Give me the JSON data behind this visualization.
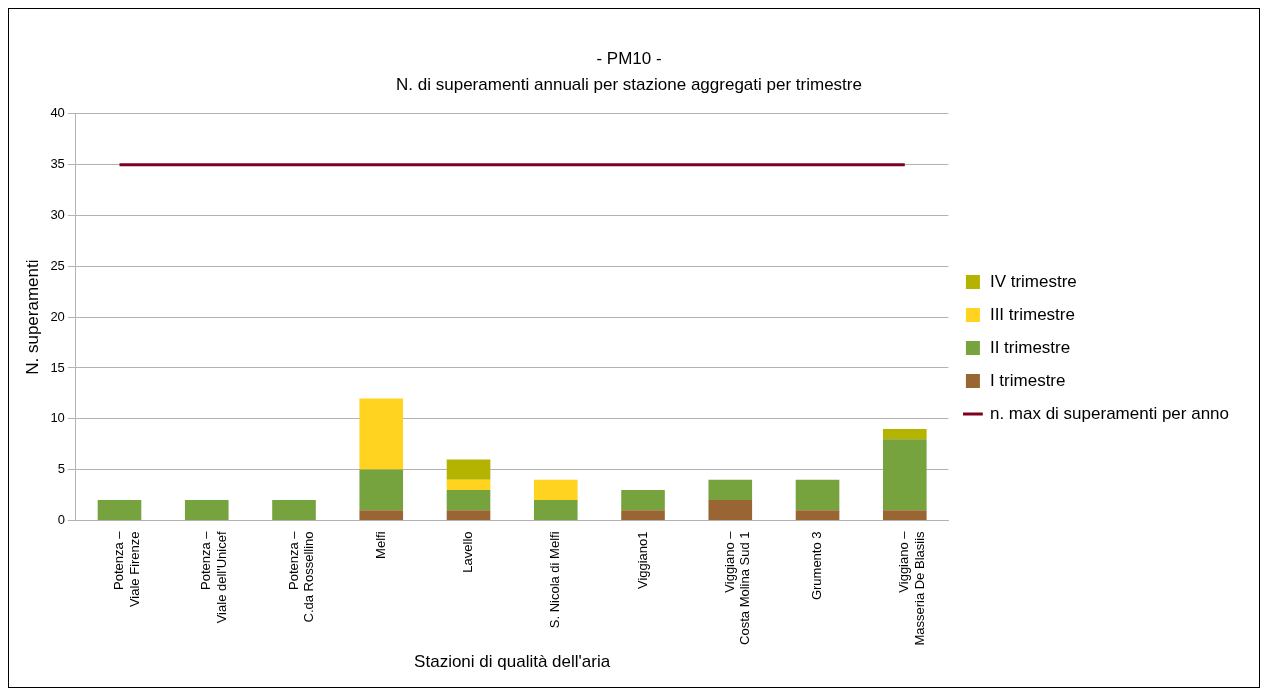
{
  "chart_data": {
    "type": "bar",
    "title": "- PM10 -",
    "subtitle": "N. di superamenti annuali per stazione aggregati per trimestre",
    "xlabel": "Stazioni di qualità dell'aria",
    "ylabel": "N. superamenti",
    "categories": [
      "Potenza –\nViale Firenze",
      "Potenza –\nViale dell'Unicef",
      "Potenza –\nC.da Rossellino",
      "Melfi",
      "Lavello",
      "S. Nicola di Melfi",
      "Viggiano1",
      "Viggiano –\nCosta Molina Sud 1",
      "Grumento 3",
      "Viggiano –\nMasseria De Blasiis"
    ],
    "stacked": true,
    "series": [
      {
        "name": "I trimestre",
        "color": "#996633",
        "values": [
          0,
          0,
          0,
          1,
          1,
          0,
          1,
          2,
          1,
          1
        ]
      },
      {
        "name": "II trimestre",
        "color": "#77a33f",
        "values": [
          2,
          2,
          2,
          4,
          2,
          2,
          2,
          2,
          3,
          7
        ]
      },
      {
        "name": "III trimestre",
        "color": "#ffd320",
        "values": [
          0,
          0,
          0,
          7,
          1,
          2,
          0,
          0,
          0,
          0
        ]
      },
      {
        "name": "IV trimestre",
        "color": "#b3b300",
        "values": [
          0,
          0,
          0,
          0,
          2,
          0,
          0,
          0,
          0,
          1
        ]
      },
      {
        "name": "n. max di superamenti per anno",
        "type": "line",
        "color": "#800020",
        "values": [
          35,
          35,
          35,
          35,
          35,
          35,
          35,
          35,
          35,
          35
        ]
      }
    ],
    "ylim": [
      0,
      40
    ],
    "yticks": [
      0,
      5,
      10,
      15,
      20,
      25,
      30,
      35,
      40
    ],
    "grid": "y",
    "legend": "right"
  }
}
